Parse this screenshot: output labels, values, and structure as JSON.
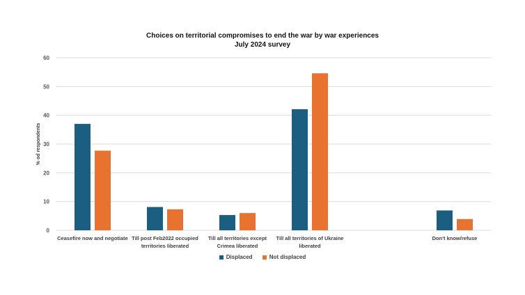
{
  "chart_data": {
    "type": "bar",
    "title": "Choices on territorial compromises to end the war by war experiences",
    "subtitle": "July 2024 survey",
    "xlabel": "",
    "ylabel": "% od respondents",
    "ylim": [
      0,
      60
    ],
    "yticks": [
      "0",
      "10",
      "20",
      "30",
      "40",
      "50",
      "60"
    ],
    "grid": true,
    "legend_position": "bottom",
    "categories": [
      [
        "Ceasefire now and negotiate"
      ],
      [
        "Till post  Feb2022 occupied",
        "territories liberated"
      ],
      [
        "Till all territories except",
        "Crimea liberated"
      ],
      [
        "Till all  territories of Ukraine",
        "liberated"
      ],
      [
        ""
      ],
      [
        "Don't know/refuse"
      ]
    ],
    "series": [
      {
        "name": "Displaced",
        "color": "#1b5e82",
        "values": [
          37.0,
          8.1,
          5.3,
          42.1,
          null,
          6.9
        ]
      },
      {
        "name": "Not displaced",
        "color": "#e8722f",
        "values": [
          27.7,
          7.3,
          6.0,
          54.6,
          null,
          3.9
        ]
      }
    ]
  }
}
